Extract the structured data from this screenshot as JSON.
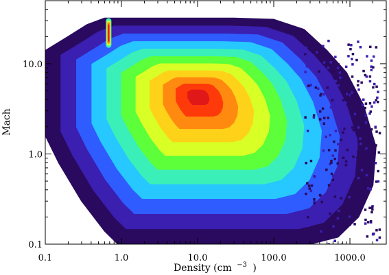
{
  "chart_data": {
    "type": "heatmap",
    "title": "",
    "xlabel": "Density (cm",
    "xlabel_exponent": "−3",
    "xlabel_close": ")",
    "ylabel": "Mach",
    "xscale": "log",
    "yscale": "log",
    "xlim": [
      0.1,
      3000
    ],
    "ylim": [
      0.1,
      50
    ],
    "x_ticks": [
      {
        "value": 0.1,
        "label": "0.1"
      },
      {
        "value": 1,
        "label": "1.0"
      },
      {
        "value": 10,
        "label": "10.0"
      },
      {
        "value": 100,
        "label": "100.0"
      },
      {
        "value": 1000,
        "label": "1000.0"
      }
    ],
    "y_ticks": [
      {
        "value": 0.1,
        "label": "0.1"
      },
      {
        "value": 1,
        "label": "1.0"
      },
      {
        "value": 10,
        "label": "10.0"
      }
    ],
    "colormap": [
      "#2a0a5e",
      "#3a1fb0",
      "#2f5cff",
      "#27c7ff",
      "#3af0b8",
      "#5cff3a",
      "#d8ff26",
      "#ffd21a",
      "#ff8a0f",
      "#ff3a0a",
      "#e01818"
    ],
    "density_peak": {
      "x": 10,
      "y": 4.5
    },
    "secondary_peak": {
      "x": 0.68,
      "y_range": [
        15,
        32
      ]
    },
    "grid": false,
    "legend": "none"
  }
}
